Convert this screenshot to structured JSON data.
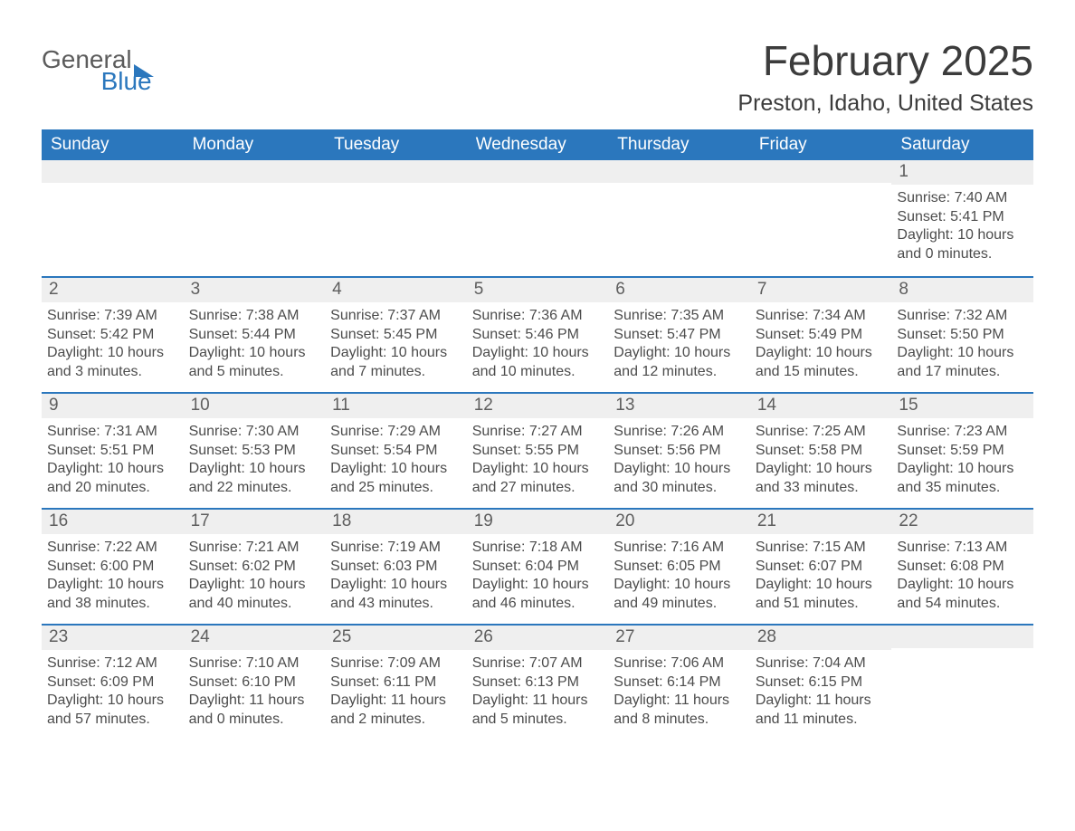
{
  "logo": {
    "word1": "General",
    "word2": "Blue"
  },
  "title": {
    "month": "February 2025",
    "location": "Preston, Idaho, United States"
  },
  "colors": {
    "accent": "#2b77bd",
    "header_text": "#ffffff",
    "daynum_bg": "#efefef",
    "daynum_fg": "#5e5e5e",
    "body_fg": "#4c4c4c",
    "title_fg": "#3c3c3c",
    "page_bg": "#ffffff",
    "logo_gray": "#5c5c5c",
    "logo_blue": "#2b77bd"
  },
  "typography": {
    "month_title_fontsize": 46,
    "location_fontsize": 25,
    "dow_fontsize": 19,
    "daynum_fontsize": 19,
    "body_fontsize": 16
  },
  "days_of_week": [
    "Sunday",
    "Monday",
    "Tuesday",
    "Wednesday",
    "Thursday",
    "Friday",
    "Saturday"
  ],
  "weeks": [
    [
      null,
      null,
      null,
      null,
      null,
      null,
      {
        "n": "1",
        "sunrise": "Sunrise: 7:40 AM",
        "sunset": "Sunset: 5:41 PM",
        "daylight1": "Daylight: 10 hours",
        "daylight2": "and 0 minutes."
      }
    ],
    [
      {
        "n": "2",
        "sunrise": "Sunrise: 7:39 AM",
        "sunset": "Sunset: 5:42 PM",
        "daylight1": "Daylight: 10 hours",
        "daylight2": "and 3 minutes."
      },
      {
        "n": "3",
        "sunrise": "Sunrise: 7:38 AM",
        "sunset": "Sunset: 5:44 PM",
        "daylight1": "Daylight: 10 hours",
        "daylight2": "and 5 minutes."
      },
      {
        "n": "4",
        "sunrise": "Sunrise: 7:37 AM",
        "sunset": "Sunset: 5:45 PM",
        "daylight1": "Daylight: 10 hours",
        "daylight2": "and 7 minutes."
      },
      {
        "n": "5",
        "sunrise": "Sunrise: 7:36 AM",
        "sunset": "Sunset: 5:46 PM",
        "daylight1": "Daylight: 10 hours",
        "daylight2": "and 10 minutes."
      },
      {
        "n": "6",
        "sunrise": "Sunrise: 7:35 AM",
        "sunset": "Sunset: 5:47 PM",
        "daylight1": "Daylight: 10 hours",
        "daylight2": "and 12 minutes."
      },
      {
        "n": "7",
        "sunrise": "Sunrise: 7:34 AM",
        "sunset": "Sunset: 5:49 PM",
        "daylight1": "Daylight: 10 hours",
        "daylight2": "and 15 minutes."
      },
      {
        "n": "8",
        "sunrise": "Sunrise: 7:32 AM",
        "sunset": "Sunset: 5:50 PM",
        "daylight1": "Daylight: 10 hours",
        "daylight2": "and 17 minutes."
      }
    ],
    [
      {
        "n": "9",
        "sunrise": "Sunrise: 7:31 AM",
        "sunset": "Sunset: 5:51 PM",
        "daylight1": "Daylight: 10 hours",
        "daylight2": "and 20 minutes."
      },
      {
        "n": "10",
        "sunrise": "Sunrise: 7:30 AM",
        "sunset": "Sunset: 5:53 PM",
        "daylight1": "Daylight: 10 hours",
        "daylight2": "and 22 minutes."
      },
      {
        "n": "11",
        "sunrise": "Sunrise: 7:29 AM",
        "sunset": "Sunset: 5:54 PM",
        "daylight1": "Daylight: 10 hours",
        "daylight2": "and 25 minutes."
      },
      {
        "n": "12",
        "sunrise": "Sunrise: 7:27 AM",
        "sunset": "Sunset: 5:55 PM",
        "daylight1": "Daylight: 10 hours",
        "daylight2": "and 27 minutes."
      },
      {
        "n": "13",
        "sunrise": "Sunrise: 7:26 AM",
        "sunset": "Sunset: 5:56 PM",
        "daylight1": "Daylight: 10 hours",
        "daylight2": "and 30 minutes."
      },
      {
        "n": "14",
        "sunrise": "Sunrise: 7:25 AM",
        "sunset": "Sunset: 5:58 PM",
        "daylight1": "Daylight: 10 hours",
        "daylight2": "and 33 minutes."
      },
      {
        "n": "15",
        "sunrise": "Sunrise: 7:23 AM",
        "sunset": "Sunset: 5:59 PM",
        "daylight1": "Daylight: 10 hours",
        "daylight2": "and 35 minutes."
      }
    ],
    [
      {
        "n": "16",
        "sunrise": "Sunrise: 7:22 AM",
        "sunset": "Sunset: 6:00 PM",
        "daylight1": "Daylight: 10 hours",
        "daylight2": "and 38 minutes."
      },
      {
        "n": "17",
        "sunrise": "Sunrise: 7:21 AM",
        "sunset": "Sunset: 6:02 PM",
        "daylight1": "Daylight: 10 hours",
        "daylight2": "and 40 minutes."
      },
      {
        "n": "18",
        "sunrise": "Sunrise: 7:19 AM",
        "sunset": "Sunset: 6:03 PM",
        "daylight1": "Daylight: 10 hours",
        "daylight2": "and 43 minutes."
      },
      {
        "n": "19",
        "sunrise": "Sunrise: 7:18 AM",
        "sunset": "Sunset: 6:04 PM",
        "daylight1": "Daylight: 10 hours",
        "daylight2": "and 46 minutes."
      },
      {
        "n": "20",
        "sunrise": "Sunrise: 7:16 AM",
        "sunset": "Sunset: 6:05 PM",
        "daylight1": "Daylight: 10 hours",
        "daylight2": "and 49 minutes."
      },
      {
        "n": "21",
        "sunrise": "Sunrise: 7:15 AM",
        "sunset": "Sunset: 6:07 PM",
        "daylight1": "Daylight: 10 hours",
        "daylight2": "and 51 minutes."
      },
      {
        "n": "22",
        "sunrise": "Sunrise: 7:13 AM",
        "sunset": "Sunset: 6:08 PM",
        "daylight1": "Daylight: 10 hours",
        "daylight2": "and 54 minutes."
      }
    ],
    [
      {
        "n": "23",
        "sunrise": "Sunrise: 7:12 AM",
        "sunset": "Sunset: 6:09 PM",
        "daylight1": "Daylight: 10 hours",
        "daylight2": "and 57 minutes."
      },
      {
        "n": "24",
        "sunrise": "Sunrise: 7:10 AM",
        "sunset": "Sunset: 6:10 PM",
        "daylight1": "Daylight: 11 hours",
        "daylight2": "and 0 minutes."
      },
      {
        "n": "25",
        "sunrise": "Sunrise: 7:09 AM",
        "sunset": "Sunset: 6:11 PM",
        "daylight1": "Daylight: 11 hours",
        "daylight2": "and 2 minutes."
      },
      {
        "n": "26",
        "sunrise": "Sunrise: 7:07 AM",
        "sunset": "Sunset: 6:13 PM",
        "daylight1": "Daylight: 11 hours",
        "daylight2": "and 5 minutes."
      },
      {
        "n": "27",
        "sunrise": "Sunrise: 7:06 AM",
        "sunset": "Sunset: 6:14 PM",
        "daylight1": "Daylight: 11 hours",
        "daylight2": "and 8 minutes."
      },
      {
        "n": "28",
        "sunrise": "Sunrise: 7:04 AM",
        "sunset": "Sunset: 6:15 PM",
        "daylight1": "Daylight: 11 hours",
        "daylight2": "and 11 minutes."
      },
      null
    ]
  ]
}
